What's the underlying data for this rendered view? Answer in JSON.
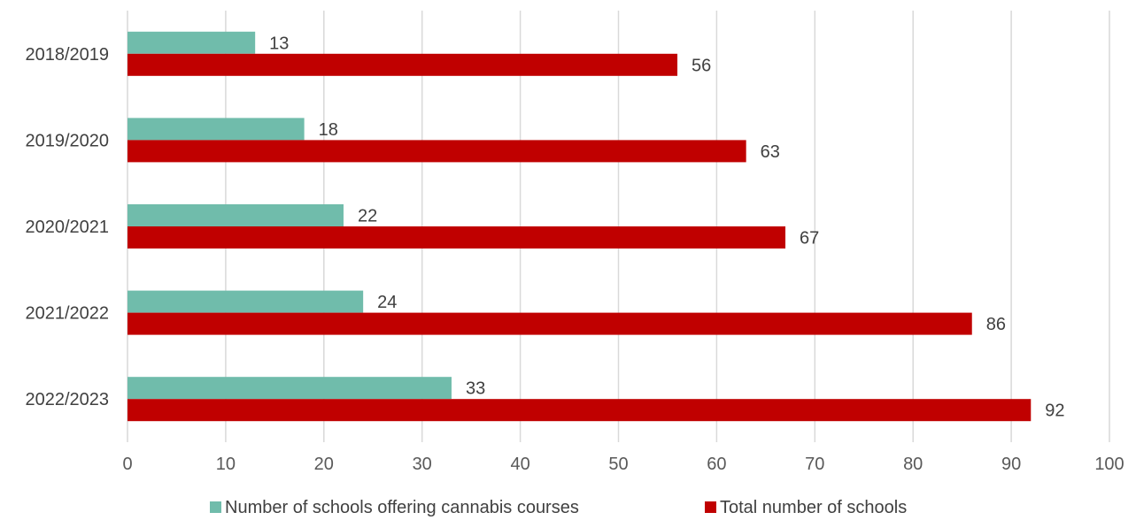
{
  "chart_data": {
    "type": "bar",
    "orientation": "horizontal",
    "categories": [
      "2018/2019",
      "2019/2020",
      "2020/2021",
      "2021/2022",
      "2022/2023"
    ],
    "series": [
      {
        "name": "Number of schools offering cannabis courses",
        "values": [
          13,
          18,
          22,
          24,
          33
        ],
        "color": "#70bcab"
      },
      {
        "name": "Total number of schools",
        "values": [
          56,
          63,
          67,
          86,
          92
        ],
        "color": "#c00000"
      }
    ],
    "xlim": [
      0,
      100
    ],
    "xticks": [
      0,
      10,
      20,
      30,
      40,
      50,
      60,
      70,
      80,
      90,
      100
    ],
    "title": "",
    "xlabel": "",
    "ylabel": "",
    "grid": "vertical",
    "legend_position": "bottom"
  }
}
